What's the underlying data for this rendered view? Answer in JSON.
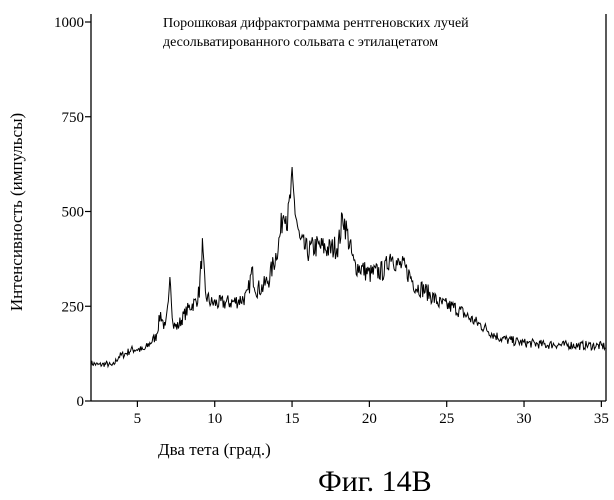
{
  "figure": {
    "caption": "Фиг. 14B"
  },
  "chart_data": {
    "type": "line",
    "title": "",
    "annotation_lines": [
      "Порошковая дифрактограмма рентгеновских лучей",
      "десольватированного сольвата с этилацетатом"
    ],
    "xlabel": "Два тета (град.)",
    "ylabel": "Интенсивность (импульсы)",
    "xlim": [
      2,
      35.3
    ],
    "ylim": [
      0,
      1000
    ],
    "xticks": [
      5,
      10,
      15,
      20,
      25,
      30,
      35
    ],
    "yticks": [
      0,
      250,
      500,
      750,
      1000
    ],
    "grid": false,
    "series": [
      {
        "color": "#000000",
        "points": [
          [
            2.0,
            100
          ],
          [
            2.5,
            95
          ],
          [
            3.0,
            98
          ],
          [
            3.4,
            92
          ],
          [
            3.8,
            118
          ],
          [
            4.2,
            124
          ],
          [
            4.6,
            135
          ],
          [
            5.0,
            137
          ],
          [
            5.4,
            133
          ],
          [
            5.8,
            152
          ],
          [
            6.2,
            170
          ],
          [
            6.5,
            230
          ],
          [
            6.8,
            188
          ],
          [
            7.0,
            252
          ],
          [
            7.1,
            355
          ],
          [
            7.3,
            200
          ],
          [
            7.6,
            196
          ],
          [
            8.0,
            225
          ],
          [
            8.4,
            250
          ],
          [
            8.8,
            262
          ],
          [
            9.0,
            290
          ],
          [
            9.2,
            405
          ],
          [
            9.4,
            278
          ],
          [
            9.8,
            258
          ],
          [
            10.3,
            258
          ],
          [
            10.8,
            260
          ],
          [
            11.3,
            262
          ],
          [
            11.7,
            268
          ],
          [
            12.1,
            275
          ],
          [
            12.4,
            340
          ],
          [
            12.7,
            295
          ],
          [
            13.1,
            300
          ],
          [
            13.5,
            322
          ],
          [
            13.9,
            375
          ],
          [
            14.2,
            430
          ],
          [
            14.5,
            520
          ],
          [
            14.7,
            470
          ],
          [
            15.0,
            575
          ],
          [
            15.2,
            505
          ],
          [
            15.5,
            420
          ],
          [
            16.0,
            395
          ],
          [
            16.5,
            408
          ],
          [
            17.0,
            405
          ],
          [
            17.5,
            400
          ],
          [
            18.0,
            412
          ],
          [
            18.3,
            490
          ],
          [
            18.6,
            435
          ],
          [
            19.0,
            360
          ],
          [
            19.5,
            350
          ],
          [
            20.0,
            335
          ],
          [
            20.5,
            340
          ],
          [
            21.0,
            345
          ],
          [
            21.4,
            390
          ],
          [
            21.8,
            360
          ],
          [
            22.2,
            355
          ],
          [
            22.6,
            332
          ],
          [
            23.0,
            302
          ],
          [
            23.5,
            295
          ],
          [
            24.0,
            278
          ],
          [
            24.5,
            258
          ],
          [
            25.0,
            252
          ],
          [
            25.5,
            246
          ],
          [
            26.0,
            234
          ],
          [
            26.5,
            218
          ],
          [
            27.0,
            205
          ],
          [
            27.5,
            192
          ],
          [
            28.0,
            176
          ],
          [
            28.5,
            166
          ],
          [
            29.0,
            160
          ],
          [
            29.5,
            157
          ],
          [
            30.0,
            153
          ],
          [
            30.5,
            152
          ],
          [
            31.0,
            150
          ],
          [
            31.5,
            148
          ],
          [
            32.0,
            150
          ],
          [
            32.5,
            147
          ],
          [
            33.0,
            148
          ],
          [
            33.5,
            146
          ],
          [
            34.0,
            147
          ],
          [
            34.5,
            146
          ],
          [
            35.0,
            145
          ],
          [
            35.3,
            144
          ]
        ]
      }
    ]
  }
}
